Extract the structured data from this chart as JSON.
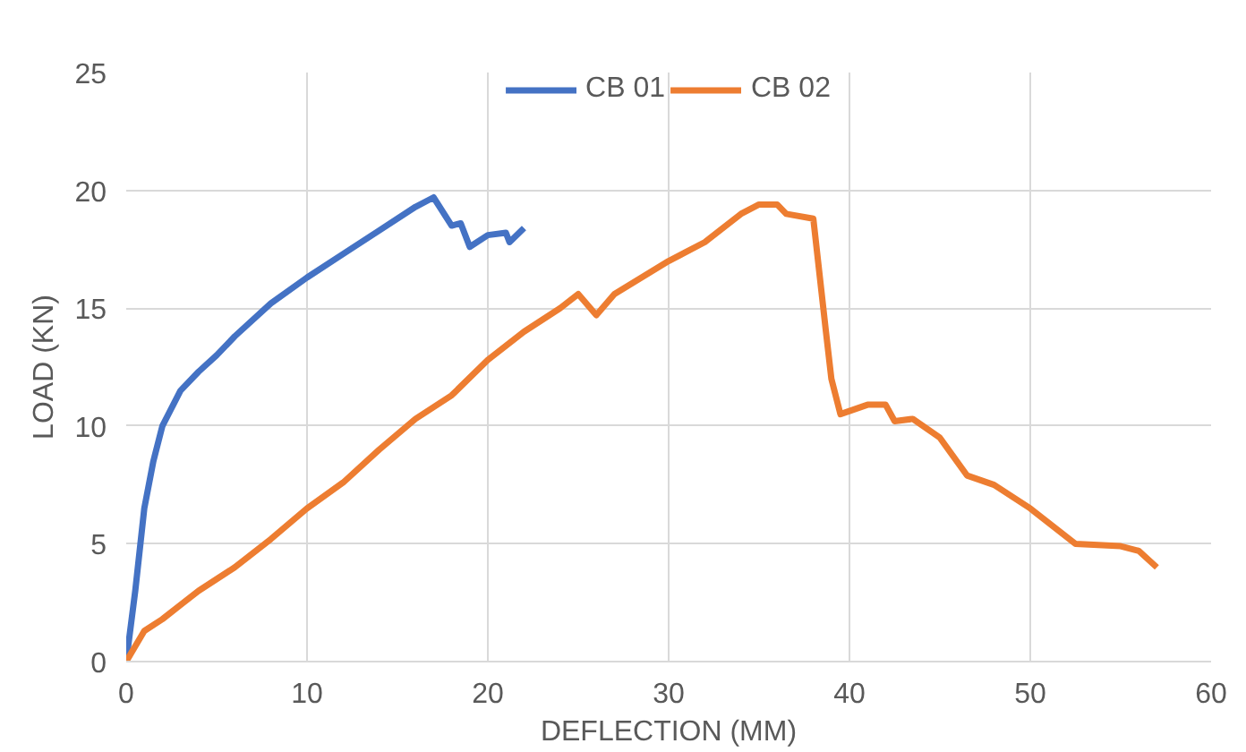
{
  "chart_data": {
    "type": "line",
    "xlabel": "DEFLECTION (MM)",
    "ylabel": "LOAD (KN)",
    "xlim": [
      0,
      60
    ],
    "xticks": [
      0,
      10,
      20,
      30,
      40,
      50,
      60
    ],
    "ylim": [
      0,
      25
    ],
    "yticks": [
      0,
      5,
      10,
      15,
      20,
      25
    ],
    "grid": true,
    "legend": "top",
    "marker": "none",
    "line_style": "solid",
    "series": [
      {
        "name": "CB 01",
        "color": "#4472c4",
        "x": [
          0,
          0.5,
          1,
          1.5,
          2,
          3,
          4,
          5,
          6,
          8,
          10,
          12,
          14,
          16,
          17,
          18,
          18.5,
          19,
          20,
          21,
          21.2,
          22
        ],
        "values": [
          0,
          3,
          6.5,
          8.5,
          10,
          11.5,
          12.3,
          13,
          13.8,
          15.2,
          16.3,
          17.3,
          18.3,
          19.3,
          19.7,
          18.5,
          18.6,
          17.6,
          18.1,
          18.2,
          17.8,
          18.4
        ]
      },
      {
        "name": "CB 02",
        "color": "#ed7d31",
        "x": [
          0,
          1,
          2,
          3,
          4,
          6,
          8,
          10,
          12,
          14,
          16,
          18,
          20,
          22,
          24,
          25,
          26,
          27,
          30,
          32,
          34,
          35,
          36,
          36.5,
          38,
          38.7,
          39,
          39.5,
          41,
          42,
          42.5,
          43.5,
          45,
          46.5,
          48,
          50,
          52.5,
          55,
          56,
          57
        ],
        "values": [
          0,
          1.3,
          1.8,
          2.4,
          3.0,
          4.0,
          5.2,
          6.5,
          7.6,
          9.0,
          10.3,
          11.3,
          12.8,
          14.0,
          15.0,
          15.6,
          14.7,
          15.6,
          17.0,
          17.8,
          19.0,
          19.4,
          19.4,
          19.0,
          18.8,
          14,
          12,
          10.5,
          10.9,
          10.9,
          10.2,
          10.3,
          9.5,
          7.9,
          7.5,
          6.5,
          5.0,
          4.9,
          4.7,
          4.0
        ]
      }
    ]
  }
}
